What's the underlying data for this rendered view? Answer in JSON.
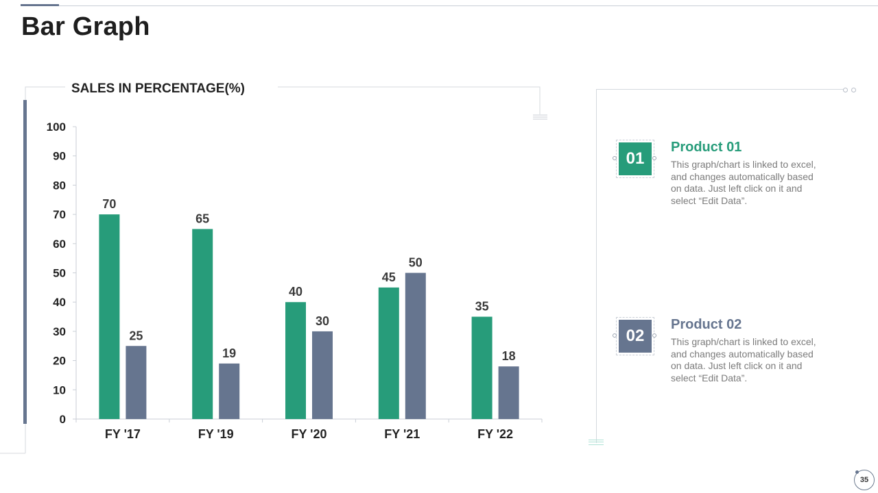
{
  "page": {
    "title": "Bar Graph",
    "slide_number": "35"
  },
  "colors": {
    "product_1": "#279c7a",
    "product_2": "#66758f",
    "axis": "#c9ced6"
  },
  "chart_data": {
    "type": "bar",
    "title": "SALES IN PERCENTAGE(%)",
    "categories": [
      "FY '17",
      "FY '19",
      "FY '20",
      "FY '21",
      "FY '22"
    ],
    "series": [
      {
        "values": [
          70,
          65,
          40,
          45,
          35
        ]
      },
      {
        "values": [
          25,
          19,
          30,
          50,
          18
        ]
      }
    ],
    "ylim": [
      0,
      100
    ],
    "yticks": [
      0,
      10,
      20,
      30,
      40,
      50,
      60,
      70,
      80,
      90,
      100
    ],
    "grid": false,
    "data_labels": true
  },
  "legend": [
    {
      "badge": "01",
      "title": "Product 01",
      "description": "This graph/chart is linked to excel, and changes automatically based on data. Just left click on it and select “Edit Data”."
    },
    {
      "badge": "02",
      "title": "Product 02",
      "description": "This graph/chart is linked to excel, and changes automatically based on data. Just left click on it and select “Edit Data”."
    }
  ]
}
